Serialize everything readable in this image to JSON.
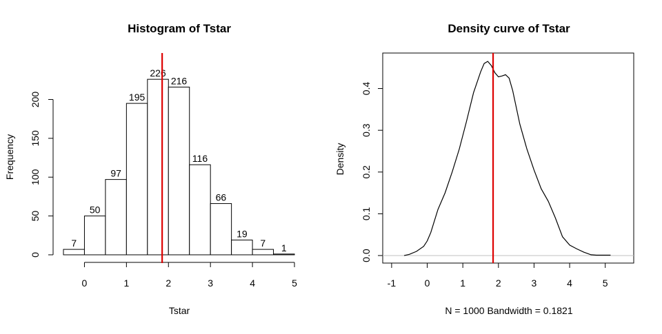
{
  "chart_data": [
    {
      "type": "bar",
      "title": "Histogram of Tstar",
      "xlabel": "Tstar",
      "ylabel": "Frequency",
      "bin_edges": [
        -0.5,
        0,
        0.5,
        1,
        1.5,
        2,
        2.5,
        3,
        3.5,
        4,
        4.5,
        5
      ],
      "values": [
        7,
        50,
        97,
        195,
        226,
        216,
        116,
        66,
        19,
        7,
        1
      ],
      "value_labels": [
        "7",
        "50",
        "97",
        "195",
        "226",
        "216",
        "116",
        "66",
        "19",
        "7",
        "1"
      ],
      "xticks": [
        "0",
        "1",
        "2",
        "3",
        "4",
        "5"
      ],
      "yticks": [
        "0",
        "50",
        "100",
        "150",
        "200"
      ],
      "xlim": [
        -0.5,
        5
      ],
      "ylim": [
        0,
        235
      ],
      "vline": {
        "x": 1.85,
        "color": "#dd0000"
      }
    },
    {
      "type": "line",
      "title": "Density curve of Tstar",
      "xlabel": "N = 1000   Bandwidth = 0.1821",
      "ylabel": "Density",
      "x": [
        -0.65,
        -0.5,
        -0.3,
        -0.1,
        0.0,
        0.1,
        0.3,
        0.5,
        0.7,
        0.9,
        1.1,
        1.3,
        1.5,
        1.6,
        1.7,
        1.8,
        1.9,
        2.0,
        2.1,
        2.2,
        2.3,
        2.4,
        2.6,
        2.8,
        3.0,
        3.2,
        3.4,
        3.6,
        3.8,
        4.0,
        4.2,
        4.4,
        4.6,
        4.75,
        4.85,
        5.0,
        5.15
      ],
      "y": [
        0.0,
        0.003,
        0.01,
        0.022,
        0.035,
        0.055,
        0.11,
        0.15,
        0.2,
        0.255,
        0.32,
        0.39,
        0.44,
        0.46,
        0.465,
        0.455,
        0.438,
        0.428,
        0.43,
        0.433,
        0.425,
        0.395,
        0.315,
        0.255,
        0.205,
        0.16,
        0.13,
        0.09,
        0.045,
        0.025,
        0.016,
        0.008,
        0.002,
        0.001,
        0.001,
        0.001,
        0.001
      ],
      "xticks": [
        "-1",
        "0",
        "1",
        "2",
        "3",
        "4",
        "5"
      ],
      "yticks": [
        "0.0",
        "0.1",
        "0.2",
        "0.3",
        "0.4"
      ],
      "xlim": [
        -1.25,
        5.8
      ],
      "ylim": [
        -0.018,
        0.485
      ],
      "vline": {
        "x": 1.85,
        "color": "#dd0000"
      },
      "baseline_color": "#c0c0c0"
    }
  ]
}
